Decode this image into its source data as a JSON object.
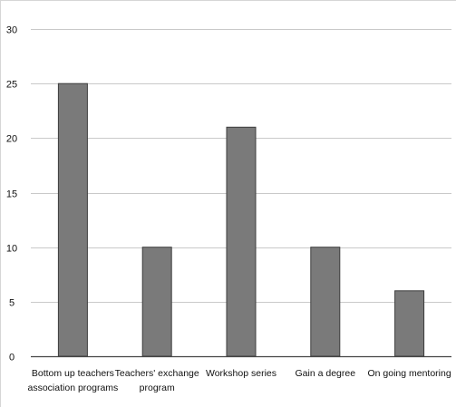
{
  "chart_data": {
    "type": "bar",
    "title": "",
    "xlabel": "",
    "ylabel": "",
    "categories": [
      "Bottom up teachers association programs",
      "Teachers' exchange program",
      "Workshop series",
      "Gain a degree",
      "On going mentoring"
    ],
    "category_label_lines": [
      [
        "Bottom up teachers",
        "association programs"
      ],
      [
        "Teachers' exchange",
        "program"
      ],
      [
        "Workshop series"
      ],
      [
        "Gain a degree"
      ],
      [
        "On going mentoring"
      ]
    ],
    "values": [
      25,
      10,
      21,
      10,
      6
    ],
    "ylim": [
      0,
      30
    ],
    "y_ticks": [
      0,
      5,
      10,
      15,
      20,
      25,
      30
    ],
    "grid": true,
    "legend": "none",
    "bar_color": "#7a7a7a"
  }
}
